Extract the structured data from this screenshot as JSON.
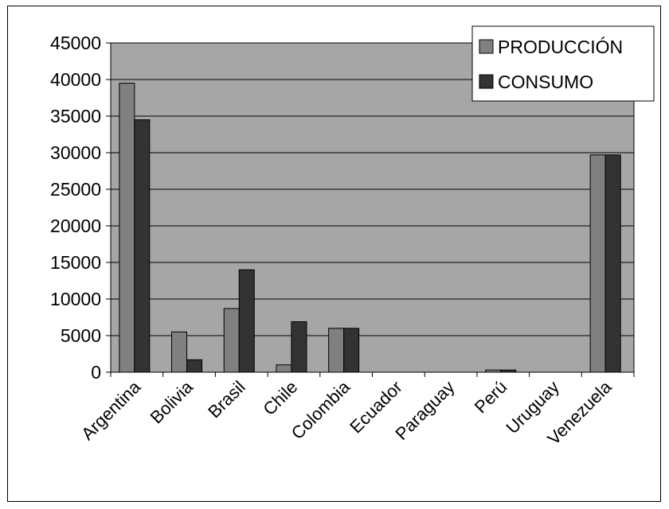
{
  "chart_data": {
    "type": "bar",
    "categories": [
      "Argentina",
      "Bolivia",
      "Brasil",
      "Chile",
      "Colombia",
      "Ecuador",
      "Paraguay",
      "Perú",
      "Uruguay",
      "Venezuela"
    ],
    "series": [
      {
        "name": "PRODUCCIÓN",
        "color": "#808080",
        "values": [
          39500,
          5500,
          8700,
          1000,
          6000,
          0,
          0,
          300,
          0,
          29700
        ]
      },
      {
        "name": "CONSUMO",
        "color": "#333333",
        "values": [
          34500,
          1700,
          14000,
          6900,
          6000,
          0,
          0,
          300,
          0,
          29700
        ]
      }
    ],
    "ylim": [
      0,
      45000
    ],
    "yticks": [
      "0",
      "5000",
      "10000",
      "15000",
      "20000",
      "25000",
      "30000",
      "35000",
      "40000",
      "45000"
    ],
    "grid": true,
    "plot_background": "#a6a6a6",
    "legend_position": "top-right"
  }
}
